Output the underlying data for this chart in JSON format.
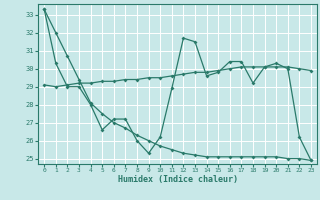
{
  "xlabel": "Humidex (Indice chaleur)",
  "bg_color": "#c8e8e8",
  "line_color": "#2a7a6a",
  "grid_color": "#ffffff",
  "xlim": [
    -0.5,
    23.5
  ],
  "ylim": [
    24.7,
    33.6
  ],
  "yticks": [
    25,
    26,
    27,
    28,
    29,
    30,
    31,
    32,
    33
  ],
  "xticks": [
    0,
    1,
    2,
    3,
    4,
    5,
    6,
    7,
    8,
    9,
    10,
    11,
    12,
    13,
    14,
    15,
    16,
    17,
    18,
    19,
    20,
    21,
    22,
    23
  ],
  "series1_x": [
    0,
    1,
    2,
    3,
    4,
    5,
    6,
    7,
    8,
    9,
    10,
    11,
    12,
    13,
    14,
    15,
    16,
    17,
    18,
    19,
    20,
    21,
    22,
    23
  ],
  "series1_y": [
    33.3,
    30.3,
    29.0,
    29.0,
    28.0,
    26.6,
    27.2,
    27.2,
    26.0,
    25.3,
    26.2,
    28.9,
    31.7,
    31.5,
    29.6,
    29.8,
    30.4,
    30.4,
    29.2,
    30.1,
    30.3,
    30.0,
    26.2,
    24.9
  ],
  "series2_x": [
    0,
    1,
    2,
    3,
    4,
    5,
    6,
    7,
    8,
    9,
    10,
    11,
    12,
    13,
    14,
    15,
    16,
    17,
    18,
    19,
    20,
    21,
    22,
    23
  ],
  "series2_y": [
    29.1,
    29.0,
    29.1,
    29.2,
    29.2,
    29.3,
    29.3,
    29.4,
    29.4,
    29.5,
    29.5,
    29.6,
    29.7,
    29.8,
    29.8,
    29.9,
    30.0,
    30.1,
    30.1,
    30.1,
    30.1,
    30.1,
    30.0,
    29.9
  ],
  "series3_x": [
    0,
    1,
    2,
    3,
    4,
    5,
    6,
    7,
    8,
    9,
    10,
    11,
    12,
    13,
    14,
    15,
    16,
    17,
    18,
    19,
    20,
    21,
    22,
    23
  ],
  "series3_y": [
    33.3,
    32.0,
    30.7,
    29.4,
    28.1,
    27.5,
    27.0,
    26.7,
    26.3,
    26.0,
    25.7,
    25.5,
    25.3,
    25.2,
    25.1,
    25.1,
    25.1,
    25.1,
    25.1,
    25.1,
    25.1,
    25.0,
    25.0,
    24.9
  ]
}
